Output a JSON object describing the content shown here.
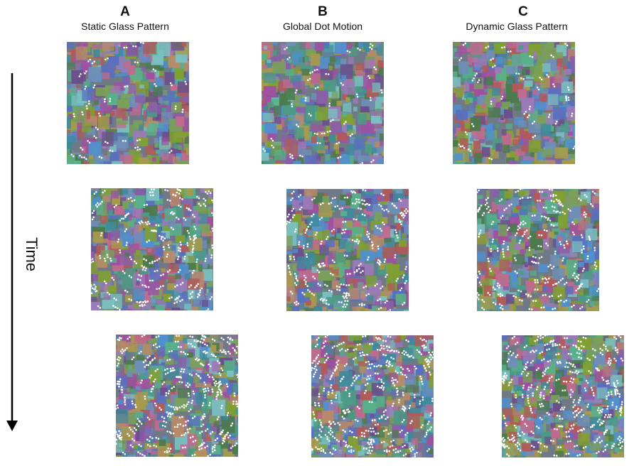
{
  "columns": [
    {
      "letter": "A",
      "title": "Static Glass Pattern"
    },
    {
      "letter": "B",
      "title": "Global Dot Motion"
    },
    {
      "letter": "C",
      "title": "Dynamic Glass Pattern"
    }
  ],
  "time_label": "Time",
  "colors": {
    "palette": [
      "#6e8fb8",
      "#8a5fa8",
      "#4d9a86",
      "#c06a8e",
      "#7aa05a",
      "#5a6fbf",
      "#a89a4c",
      "#3f8a9c",
      "#b05a5a",
      "#6a4f8c",
      "#58b08a",
      "#9c7ab8",
      "#4c7a4c",
      "#b88a6a",
      "#7ac0c0",
      "#a050a0",
      "#5090d0",
      "#80a030"
    ],
    "dot": "#ffffff"
  }
}
